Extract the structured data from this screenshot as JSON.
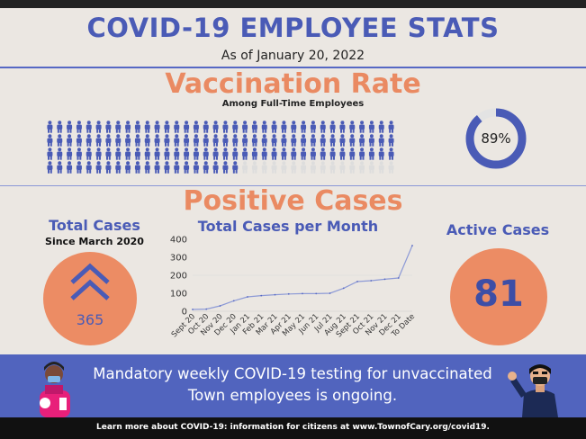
{
  "header": {
    "title": "COVID-19 EMPLOYEE STATS",
    "as_of": "As of January 20, 2022"
  },
  "vaccination": {
    "title": "Vaccination Rate",
    "subtitle": "Among Full-Time Employees",
    "rate_label": "89%",
    "rate_fraction": 0.89,
    "colors": {
      "filled": "#4a5bb6",
      "empty": "#dddddd",
      "ring_bg": "#e3e3e3"
    }
  },
  "positive_cases": {
    "title": "Positive Cases",
    "total": {
      "heading": "Total Cases",
      "subheading": "Since March 2020",
      "value": "365"
    },
    "active": {
      "heading": "Active Cases",
      "value": "81"
    },
    "chart_heading": "Total Cases per Month"
  },
  "chart_data": {
    "type": "line",
    "title": "Total Cases per Month",
    "xlabel": "",
    "ylabel": "",
    "ylim": [
      0,
      400
    ],
    "yticks": [
      0,
      100,
      200,
      300,
      400
    ],
    "grid": false,
    "categories": [
      "Sept 20",
      "Oct 20",
      "Nov 20",
      "Dec 20",
      "Jan 21",
      "Feb 21",
      "Mar 21",
      "Apr 21",
      "May 21",
      "Jun 21",
      "Jul 21",
      "Aug 21",
      "Sept 21",
      "Oct 21",
      "Nov 21",
      "Dec 21",
      "To Date"
    ],
    "values": [
      10,
      12,
      30,
      58,
      80,
      87,
      92,
      96,
      98,
      98,
      100,
      128,
      165,
      170,
      178,
      185,
      365
    ],
    "line_color": "#8d9ad6",
    "marker_color": "#5668c4"
  },
  "banner": {
    "line1": "Mandatory weekly COVID-19 testing for unvaccinated",
    "line2": "Town employees is ongoing."
  },
  "footer": {
    "text": "Learn more about COVID-19: information for citizens at www.TownofCary.org/covid19."
  },
  "icons": {
    "person": "person-icon",
    "chevrons": "double-chevron-up-icon",
    "nurse": "health-worker-illustration",
    "waving_man": "masked-person-waving-illustration"
  }
}
